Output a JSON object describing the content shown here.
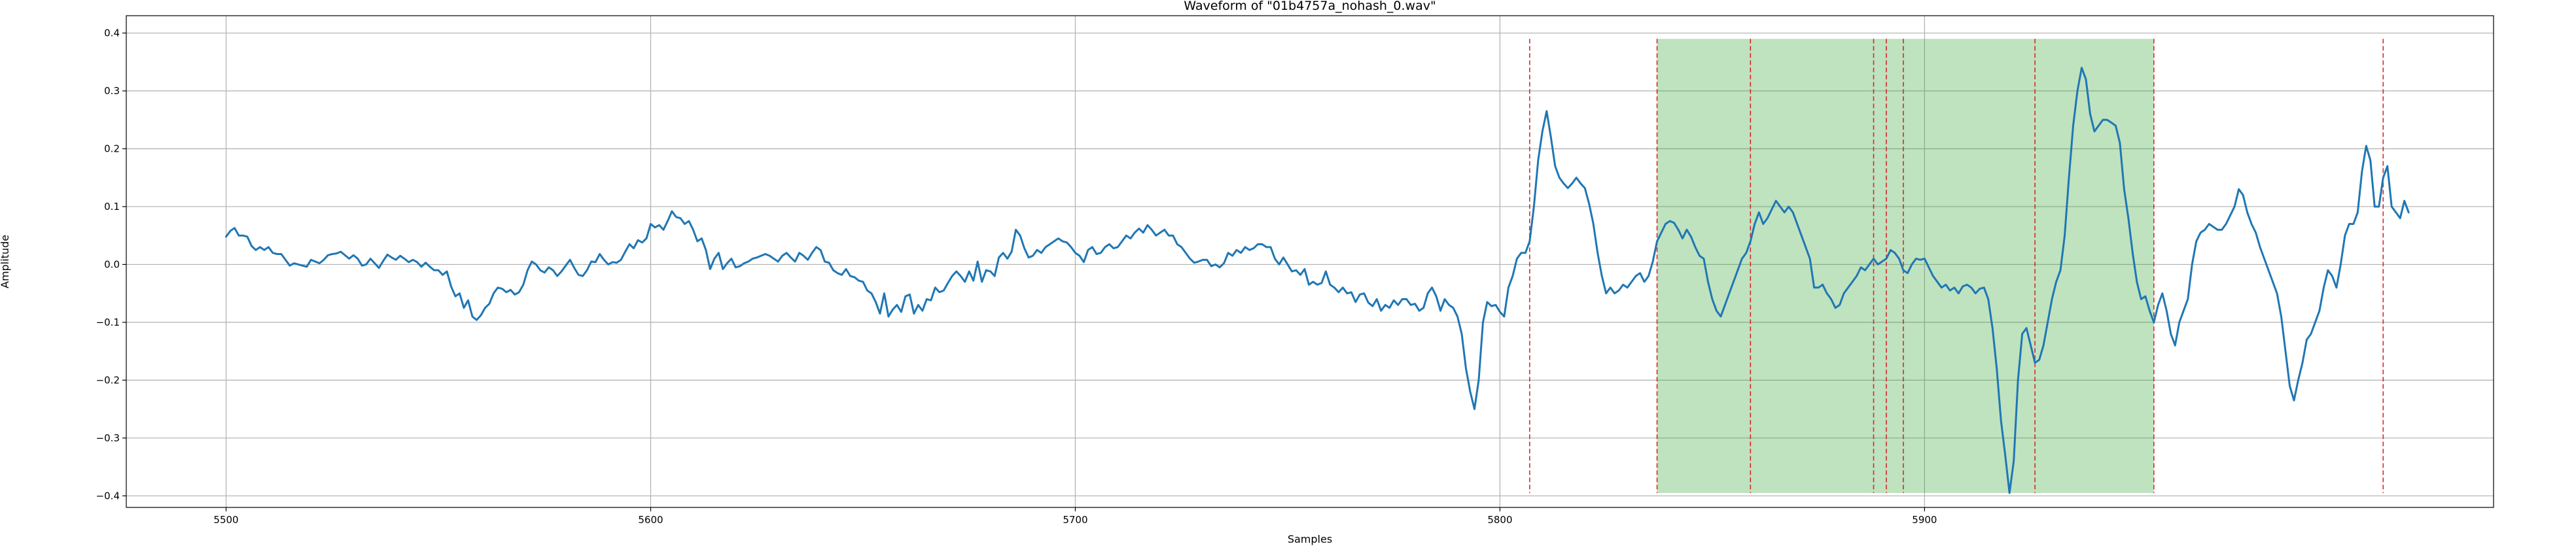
{
  "chart_data": {
    "type": "line",
    "title": "Waveform of \"01b4757a_nohash_0.wav\"",
    "xlabel": "Samples",
    "ylabel": "Amplitude",
    "xlim": [
      5476.5,
      6034
    ],
    "ylim": [
      -0.42,
      0.43
    ],
    "grid": true,
    "xticks": [
      5500,
      5600,
      5700,
      5800,
      5900
    ],
    "xtick_labels": [
      "5500",
      "5600",
      "5700",
      "5800",
      "5900"
    ],
    "yticks": [
      -0.4,
      -0.3,
      -0.2,
      -0.1,
      0.0,
      0.1,
      0.2,
      0.3,
      0.4
    ],
    "ytick_labels": [
      "−0.4",
      "−0.3",
      "−0.2",
      "−0.1",
      "0.0",
      "0.1",
      "0.2",
      "0.3",
      "0.4"
    ],
    "line_color": "#1f77b4",
    "x_start": 5500,
    "series": [
      {
        "values": [
          0.048,
          0.058,
          0.063,
          0.05,
          0.05,
          0.048,
          0.032,
          0.025,
          0.03,
          0.025,
          0.03,
          0.02,
          0.018,
          0.018,
          0.008,
          -0.002,
          0.002,
          0.0,
          -0.002,
          -0.004,
          0.008,
          0.005,
          0.002,
          0.008,
          0.016,
          0.018,
          0.019,
          0.022,
          0.016,
          0.01,
          0.016,
          0.01,
          -0.002,
          0.0,
          0.01,
          0.002,
          -0.006,
          0.006,
          0.017,
          0.012,
          0.008,
          0.015,
          0.01,
          0.004,
          0.008,
          0.004,
          -0.004,
          0.003,
          -0.004,
          -0.01,
          -0.01,
          -0.018,
          -0.012,
          -0.038,
          -0.055,
          -0.05,
          -0.075,
          -0.062,
          -0.09,
          -0.096,
          -0.088,
          -0.075,
          -0.068,
          -0.05,
          -0.04,
          -0.042,
          -0.048,
          -0.044,
          -0.052,
          -0.048,
          -0.035,
          -0.01,
          0.005,
          0.0,
          -0.01,
          -0.014,
          -0.005,
          -0.01,
          -0.02,
          -0.012,
          -0.002,
          0.008,
          -0.006,
          -0.018,
          -0.02,
          -0.01,
          0.005,
          0.004,
          0.018,
          0.008,
          0.0,
          0.004,
          0.003,
          0.008,
          0.022,
          0.035,
          0.028,
          0.042,
          0.038,
          0.045,
          0.07,
          0.064,
          0.068,
          0.06,
          0.075,
          0.092,
          0.082,
          0.08,
          0.07,
          0.075,
          0.06,
          0.04,
          0.045,
          0.025,
          -0.008,
          0.01,
          0.02,
          -0.008,
          0.002,
          0.01,
          -0.005,
          -0.003,
          0.002,
          0.005,
          0.01,
          0.012,
          0.015,
          0.018,
          0.015,
          0.01,
          0.005,
          0.015,
          0.02,
          0.012,
          0.005,
          0.02,
          0.015,
          0.008,
          0.02,
          0.03,
          0.025,
          0.005,
          0.003,
          -0.01,
          -0.015,
          -0.018,
          -0.008,
          -0.02,
          -0.022,
          -0.028,
          -0.03,
          -0.045,
          -0.05,
          -0.065,
          -0.085,
          -0.05,
          -0.09,
          -0.078,
          -0.07,
          -0.082,
          -0.055,
          -0.052,
          -0.085,
          -0.07,
          -0.08,
          -0.06,
          -0.062,
          -0.04,
          -0.048,
          -0.045,
          -0.032,
          -0.02,
          -0.012,
          -0.02,
          -0.03,
          -0.012,
          -0.028,
          0.005,
          -0.03,
          -0.01,
          -0.012,
          -0.02,
          0.012,
          0.02,
          0.01,
          0.022,
          0.06,
          0.05,
          0.028,
          0.012,
          0.015,
          0.025,
          0.02,
          0.03,
          0.035,
          0.04,
          0.045,
          0.04,
          0.038,
          0.03,
          0.02,
          0.015,
          0.004,
          0.025,
          0.03,
          0.018,
          0.02,
          0.03,
          0.035,
          0.028,
          0.03,
          0.04,
          0.05,
          0.045,
          0.055,
          0.062,
          0.055,
          0.068,
          0.06,
          0.05,
          0.055,
          0.06,
          0.05,
          0.05,
          0.035,
          0.03,
          0.02,
          0.01,
          0.003,
          0.005,
          0.008,
          0.008,
          -0.003,
          0.0,
          -0.005,
          0.002,
          0.02,
          0.015,
          0.025,
          0.02,
          0.03,
          0.025,
          0.028,
          0.035,
          0.035,
          0.03,
          0.03,
          0.01,
          0.0,
          0.012,
          0.0,
          -0.012,
          -0.01,
          -0.018,
          -0.008,
          -0.035,
          -0.03,
          -0.035,
          -0.032,
          -0.012,
          -0.035,
          -0.04,
          -0.048,
          -0.04,
          -0.05,
          -0.048,
          -0.065,
          -0.052,
          -0.05,
          -0.066,
          -0.072,
          -0.06,
          -0.08,
          -0.07,
          -0.075,
          -0.062,
          -0.07,
          -0.06,
          -0.06,
          -0.07,
          -0.068,
          -0.08,
          -0.075,
          -0.05,
          -0.04,
          -0.055,
          -0.08,
          -0.06,
          -0.07,
          -0.075,
          -0.09,
          -0.12,
          -0.18,
          -0.22,
          -0.25,
          -0.2,
          -0.1,
          -0.065,
          -0.072,
          -0.07,
          -0.082,
          -0.09,
          -0.04,
          -0.02,
          0.01,
          0.02,
          0.02,
          0.04,
          0.1,
          0.18,
          0.23,
          0.265,
          0.22,
          0.17,
          0.15,
          0.14,
          0.132,
          0.14,
          0.15,
          0.14,
          0.132,
          0.105,
          0.07,
          0.02,
          -0.02,
          -0.05,
          -0.04,
          -0.05,
          -0.045,
          -0.035,
          -0.04,
          -0.03,
          -0.02,
          -0.015,
          -0.03,
          -0.02,
          0.005,
          0.04,
          0.055,
          0.07,
          0.075,
          0.072,
          0.06,
          0.045,
          0.06,
          0.048,
          0.03,
          0.015,
          0.01,
          -0.03,
          -0.06,
          -0.08,
          -0.09,
          -0.07,
          -0.05,
          -0.03,
          -0.01,
          0.01,
          0.02,
          0.04,
          0.07,
          0.09,
          0.07,
          0.08,
          0.095,
          0.11,
          0.1,
          0.09,
          0.1,
          0.09,
          0.07,
          0.05,
          0.03,
          0.01,
          -0.04,
          -0.04,
          -0.035,
          -0.05,
          -0.06,
          -0.075,
          -0.07,
          -0.05,
          -0.04,
          -0.03,
          -0.02,
          -0.005,
          -0.01,
          0.0,
          0.01,
          0.0,
          0.005,
          0.01,
          0.025,
          0.02,
          0.01,
          -0.01,
          -0.015,
          0.0,
          0.01,
          0.008,
          0.01,
          -0.005,
          -0.02,
          -0.03,
          -0.04,
          -0.035,
          -0.045,
          -0.04,
          -0.05,
          -0.038,
          -0.035,
          -0.04,
          -0.05,
          -0.042,
          -0.04,
          -0.06,
          -0.11,
          -0.18,
          -0.27,
          -0.33,
          -0.395,
          -0.34,
          -0.2,
          -0.12,
          -0.11,
          -0.14,
          -0.17,
          -0.165,
          -0.14,
          -0.1,
          -0.06,
          -0.03,
          -0.01,
          0.05,
          0.15,
          0.24,
          0.3,
          0.34,
          0.32,
          0.26,
          0.23,
          0.24,
          0.25,
          0.25,
          0.245,
          0.24,
          0.21,
          0.13,
          0.08,
          0.02,
          -0.03,
          -0.06,
          -0.055,
          -0.08,
          -0.1,
          -0.07,
          -0.05,
          -0.08,
          -0.12,
          -0.14,
          -0.1,
          -0.08,
          -0.06,
          0.0,
          0.04,
          0.055,
          0.06,
          0.07,
          0.065,
          0.06,
          0.06,
          0.07,
          0.085,
          0.1,
          0.13,
          0.12,
          0.09,
          0.07,
          0.055,
          0.03,
          0.01,
          -0.01,
          -0.03,
          -0.05,
          -0.09,
          -0.15,
          -0.21,
          -0.235,
          -0.2,
          -0.17,
          -0.13,
          -0.12,
          -0.1,
          -0.08,
          -0.04,
          -0.01,
          -0.02,
          -0.04,
          0.0,
          0.05,
          0.07,
          0.07,
          0.09,
          0.16,
          0.205,
          0.18,
          0.1,
          0.1,
          0.15,
          0.17,
          0.1,
          0.09,
          0.08,
          0.11,
          0.09
        ],
        "color": "#1f77b4"
      }
    ],
    "shaded_region": {
      "x_range": [
        5837,
        5954
      ],
      "y_range": [
        -0.395,
        0.39
      ],
      "color": "#2ca02c",
      "opacity": 0.3
    },
    "vlines": {
      "x": [
        5807,
        5837,
        5859,
        5888,
        5891,
        5895,
        5926,
        5954,
        6008
      ],
      "y_range": [
        -0.395,
        0.39
      ],
      "color": "#d62728"
    }
  }
}
